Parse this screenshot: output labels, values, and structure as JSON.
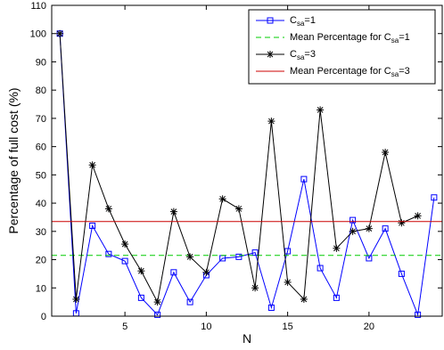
{
  "chart_data": {
    "type": "line",
    "xlabel": "N",
    "ylabel": "Percentage of full cost (%)",
    "xlim": [
      0.5,
      24.5
    ],
    "ylim": [
      0,
      110
    ],
    "xticks": [
      5,
      10,
      15,
      20
    ],
    "yticks": [
      0,
      10,
      20,
      30,
      40,
      50,
      60,
      70,
      80,
      90,
      100,
      110
    ],
    "grid": false,
    "legend_position": "top-right",
    "series": [
      {
        "name_main": "C",
        "name_sub": "sa",
        "name_suffix": "=1",
        "kind": "line-marker",
        "marker": "square",
        "color": "#0000ff",
        "x": [
          1,
          2,
          3,
          4,
          5,
          6,
          7,
          8,
          9,
          10,
          11,
          12,
          13,
          14,
          15,
          16,
          17,
          18,
          19,
          20,
          21,
          22,
          23,
          24
        ],
        "values": [
          100,
          1,
          32,
          22,
          19.5,
          6.5,
          0.5,
          15.5,
          5,
          14.5,
          20.5,
          21,
          22.5,
          3,
          23,
          48.5,
          17,
          6.5,
          34,
          20.5,
          31,
          15,
          0.5,
          42
        ]
      },
      {
        "name_main": "Mean Percentage for C",
        "name_sub": "sa",
        "name_suffix": "=1",
        "kind": "hline",
        "color": "#00cc00",
        "dash": "6,4",
        "value": 21.5
      },
      {
        "name_main": "C",
        "name_sub": "sa",
        "name_suffix": "=3",
        "kind": "line-marker",
        "marker": "asterisk",
        "color": "#000000",
        "x": [
          1,
          2,
          3,
          4,
          5,
          6,
          7,
          8,
          9,
          10,
          11,
          12,
          13,
          14,
          15,
          16,
          17,
          18,
          19,
          20,
          21,
          22,
          23
        ],
        "values": [
          100,
          6,
          53.5,
          38,
          25.5,
          16,
          5,
          37,
          21,
          15.5,
          41.5,
          38,
          10,
          69,
          12,
          6,
          73,
          24,
          30,
          31,
          58,
          33,
          35.5
        ]
      },
      {
        "name_main": "Mean Percentage for C",
        "name_sub": "sa",
        "name_suffix": "=3",
        "kind": "hline",
        "color": "#cc0000",
        "value": 33.5
      }
    ]
  }
}
